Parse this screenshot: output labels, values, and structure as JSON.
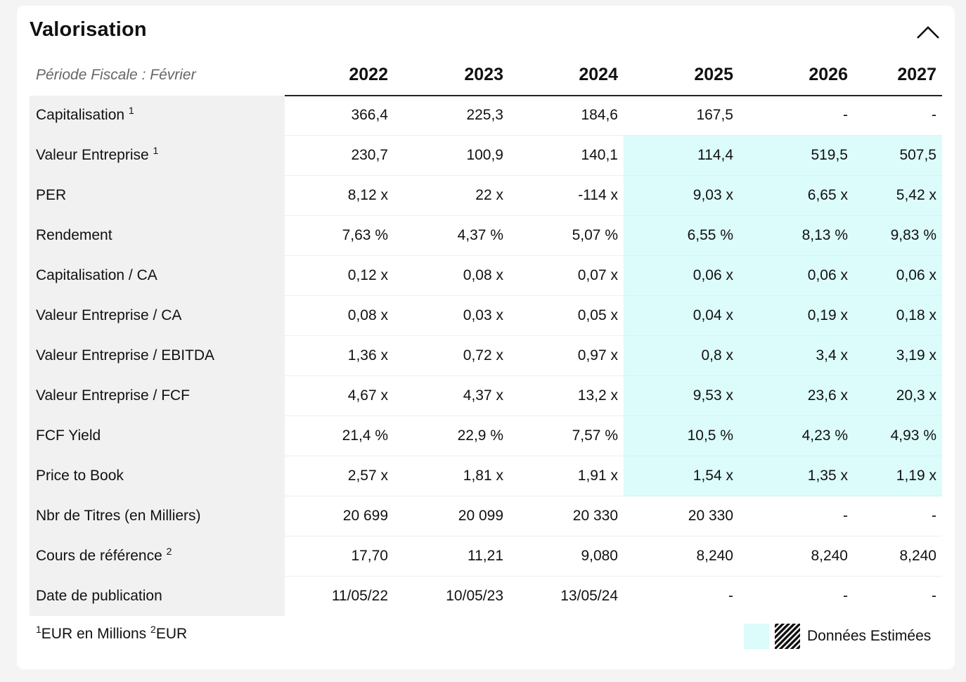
{
  "section": {
    "title": "Valorisation",
    "collapse_icon": "chevron-up-icon"
  },
  "table": {
    "period_label": "Période Fiscale : Février",
    "years": [
      "2022",
      "2023",
      "2024",
      "2025",
      "2026",
      "2027"
    ],
    "rows": [
      {
        "label": "Capitalisation",
        "sup": "1",
        "values": [
          "366,4",
          "225,3",
          "184,6",
          "167,5",
          "-",
          "-"
        ],
        "estimated": [
          false,
          false,
          false,
          false,
          false,
          false
        ]
      },
      {
        "label": "Valeur Entreprise",
        "sup": "1",
        "values": [
          "230,7",
          "100,9",
          "140,1",
          "114,4",
          "519,5",
          "507,5"
        ],
        "estimated": [
          false,
          false,
          false,
          true,
          true,
          true
        ]
      },
      {
        "label": "PER",
        "sup": "",
        "values": [
          "8,12 x",
          "22 x",
          "-114 x",
          "9,03 x",
          "6,65 x",
          "5,42 x"
        ],
        "estimated": [
          false,
          false,
          false,
          true,
          true,
          true
        ]
      },
      {
        "label": "Rendement",
        "sup": "",
        "values": [
          "7,63 %",
          "4,37 %",
          "5,07 %",
          "6,55 %",
          "8,13 %",
          "9,83 %"
        ],
        "estimated": [
          false,
          false,
          false,
          true,
          true,
          true
        ]
      },
      {
        "label": "Capitalisation / CA",
        "sup": "",
        "values": [
          "0,12 x",
          "0,08 x",
          "0,07 x",
          "0,06 x",
          "0,06 x",
          "0,06 x"
        ],
        "estimated": [
          false,
          false,
          false,
          true,
          true,
          true
        ]
      },
      {
        "label": "Valeur Entreprise / CA",
        "sup": "",
        "values": [
          "0,08 x",
          "0,03 x",
          "0,05 x",
          "0,04 x",
          "0,19 x",
          "0,18 x"
        ],
        "estimated": [
          false,
          false,
          false,
          true,
          true,
          true
        ]
      },
      {
        "label": "Valeur Entreprise / EBITDA",
        "sup": "",
        "values": [
          "1,36 x",
          "0,72 x",
          "0,97 x",
          "0,8 x",
          "3,4 x",
          "3,19 x"
        ],
        "estimated": [
          false,
          false,
          false,
          true,
          true,
          true
        ]
      },
      {
        "label": "Valeur Entreprise / FCF",
        "sup": "",
        "values": [
          "4,67 x",
          "4,37 x",
          "13,2 x",
          "9,53 x",
          "23,6 x",
          "20,3 x"
        ],
        "estimated": [
          false,
          false,
          false,
          true,
          true,
          true
        ]
      },
      {
        "label": "FCF Yield",
        "sup": "",
        "values": [
          "21,4 %",
          "22,9 %",
          "7,57 %",
          "10,5 %",
          "4,23 %",
          "4,93 %"
        ],
        "estimated": [
          false,
          false,
          false,
          true,
          true,
          true
        ]
      },
      {
        "label": "Price to Book",
        "sup": "",
        "values": [
          "2,57 x",
          "1,81 x",
          "1,91 x",
          "1,54 x",
          "1,35 x",
          "1,19 x"
        ],
        "estimated": [
          false,
          false,
          false,
          true,
          true,
          true
        ]
      },
      {
        "label": "Nbr de Titres (en Milliers)",
        "sup": "",
        "values": [
          "20 699",
          "20 099",
          "20 330",
          "20 330",
          "-",
          "-"
        ],
        "estimated": [
          false,
          false,
          false,
          false,
          false,
          false
        ]
      },
      {
        "label": "Cours de référence",
        "sup": "2",
        "values": [
          "17,70",
          "11,21",
          "9,080",
          "8,240",
          "8,240",
          "8,240"
        ],
        "estimated": [
          false,
          false,
          false,
          false,
          false,
          false
        ]
      },
      {
        "label": "Date de publication",
        "sup": "",
        "values": [
          "11/05/22",
          "10/05/23",
          "13/05/24",
          "-",
          "-",
          "-"
        ],
        "estimated": [
          false,
          false,
          false,
          false,
          false,
          false
        ]
      }
    ]
  },
  "footnotes": {
    "note1_sup": "1",
    "note1_text": "EUR en Millions",
    "note2_sup": "2",
    "note2_text": "EUR"
  },
  "legend": {
    "label": "Données Estimées",
    "estimated_color": "#dcfbfb",
    "hatch_icon": "hatched-pattern-icon"
  }
}
